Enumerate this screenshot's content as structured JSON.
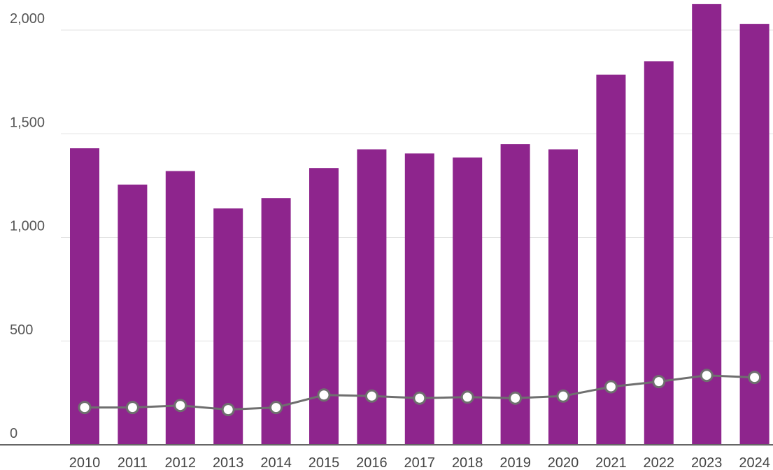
{
  "chart_data": {
    "type": "bar",
    "title": "",
    "xlabel": "",
    "ylabel": "",
    "categories": [
      "2010",
      "2011",
      "2012",
      "2013",
      "2014",
      "2015",
      "2016",
      "2017",
      "2018",
      "2019",
      "2020",
      "2021",
      "2022",
      "2023",
      "2024"
    ],
    "series": [
      {
        "type": "bar",
        "color": "#8e258d",
        "values": [
          1430,
          1255,
          1320,
          1140,
          1190,
          1335,
          1425,
          1405,
          1385,
          1450,
          1425,
          1785,
          1850,
          2125,
          2030
        ]
      },
      {
        "type": "line",
        "color": "#6f6f6f",
        "marker_color": "#ffffff",
        "values": [
          180,
          180,
          190,
          170,
          180,
          240,
          235,
          225,
          230,
          225,
          235,
          280,
          305,
          335,
          325
        ]
      }
    ],
    "ylim": [
      0,
      2150
    ],
    "yticks": [
      0,
      500,
      1000,
      1500,
      2000
    ],
    "ytick_labels": [
      "0",
      "500",
      "1,000",
      "1,500",
      "2,000"
    ],
    "grid": true,
    "legend": "none"
  }
}
